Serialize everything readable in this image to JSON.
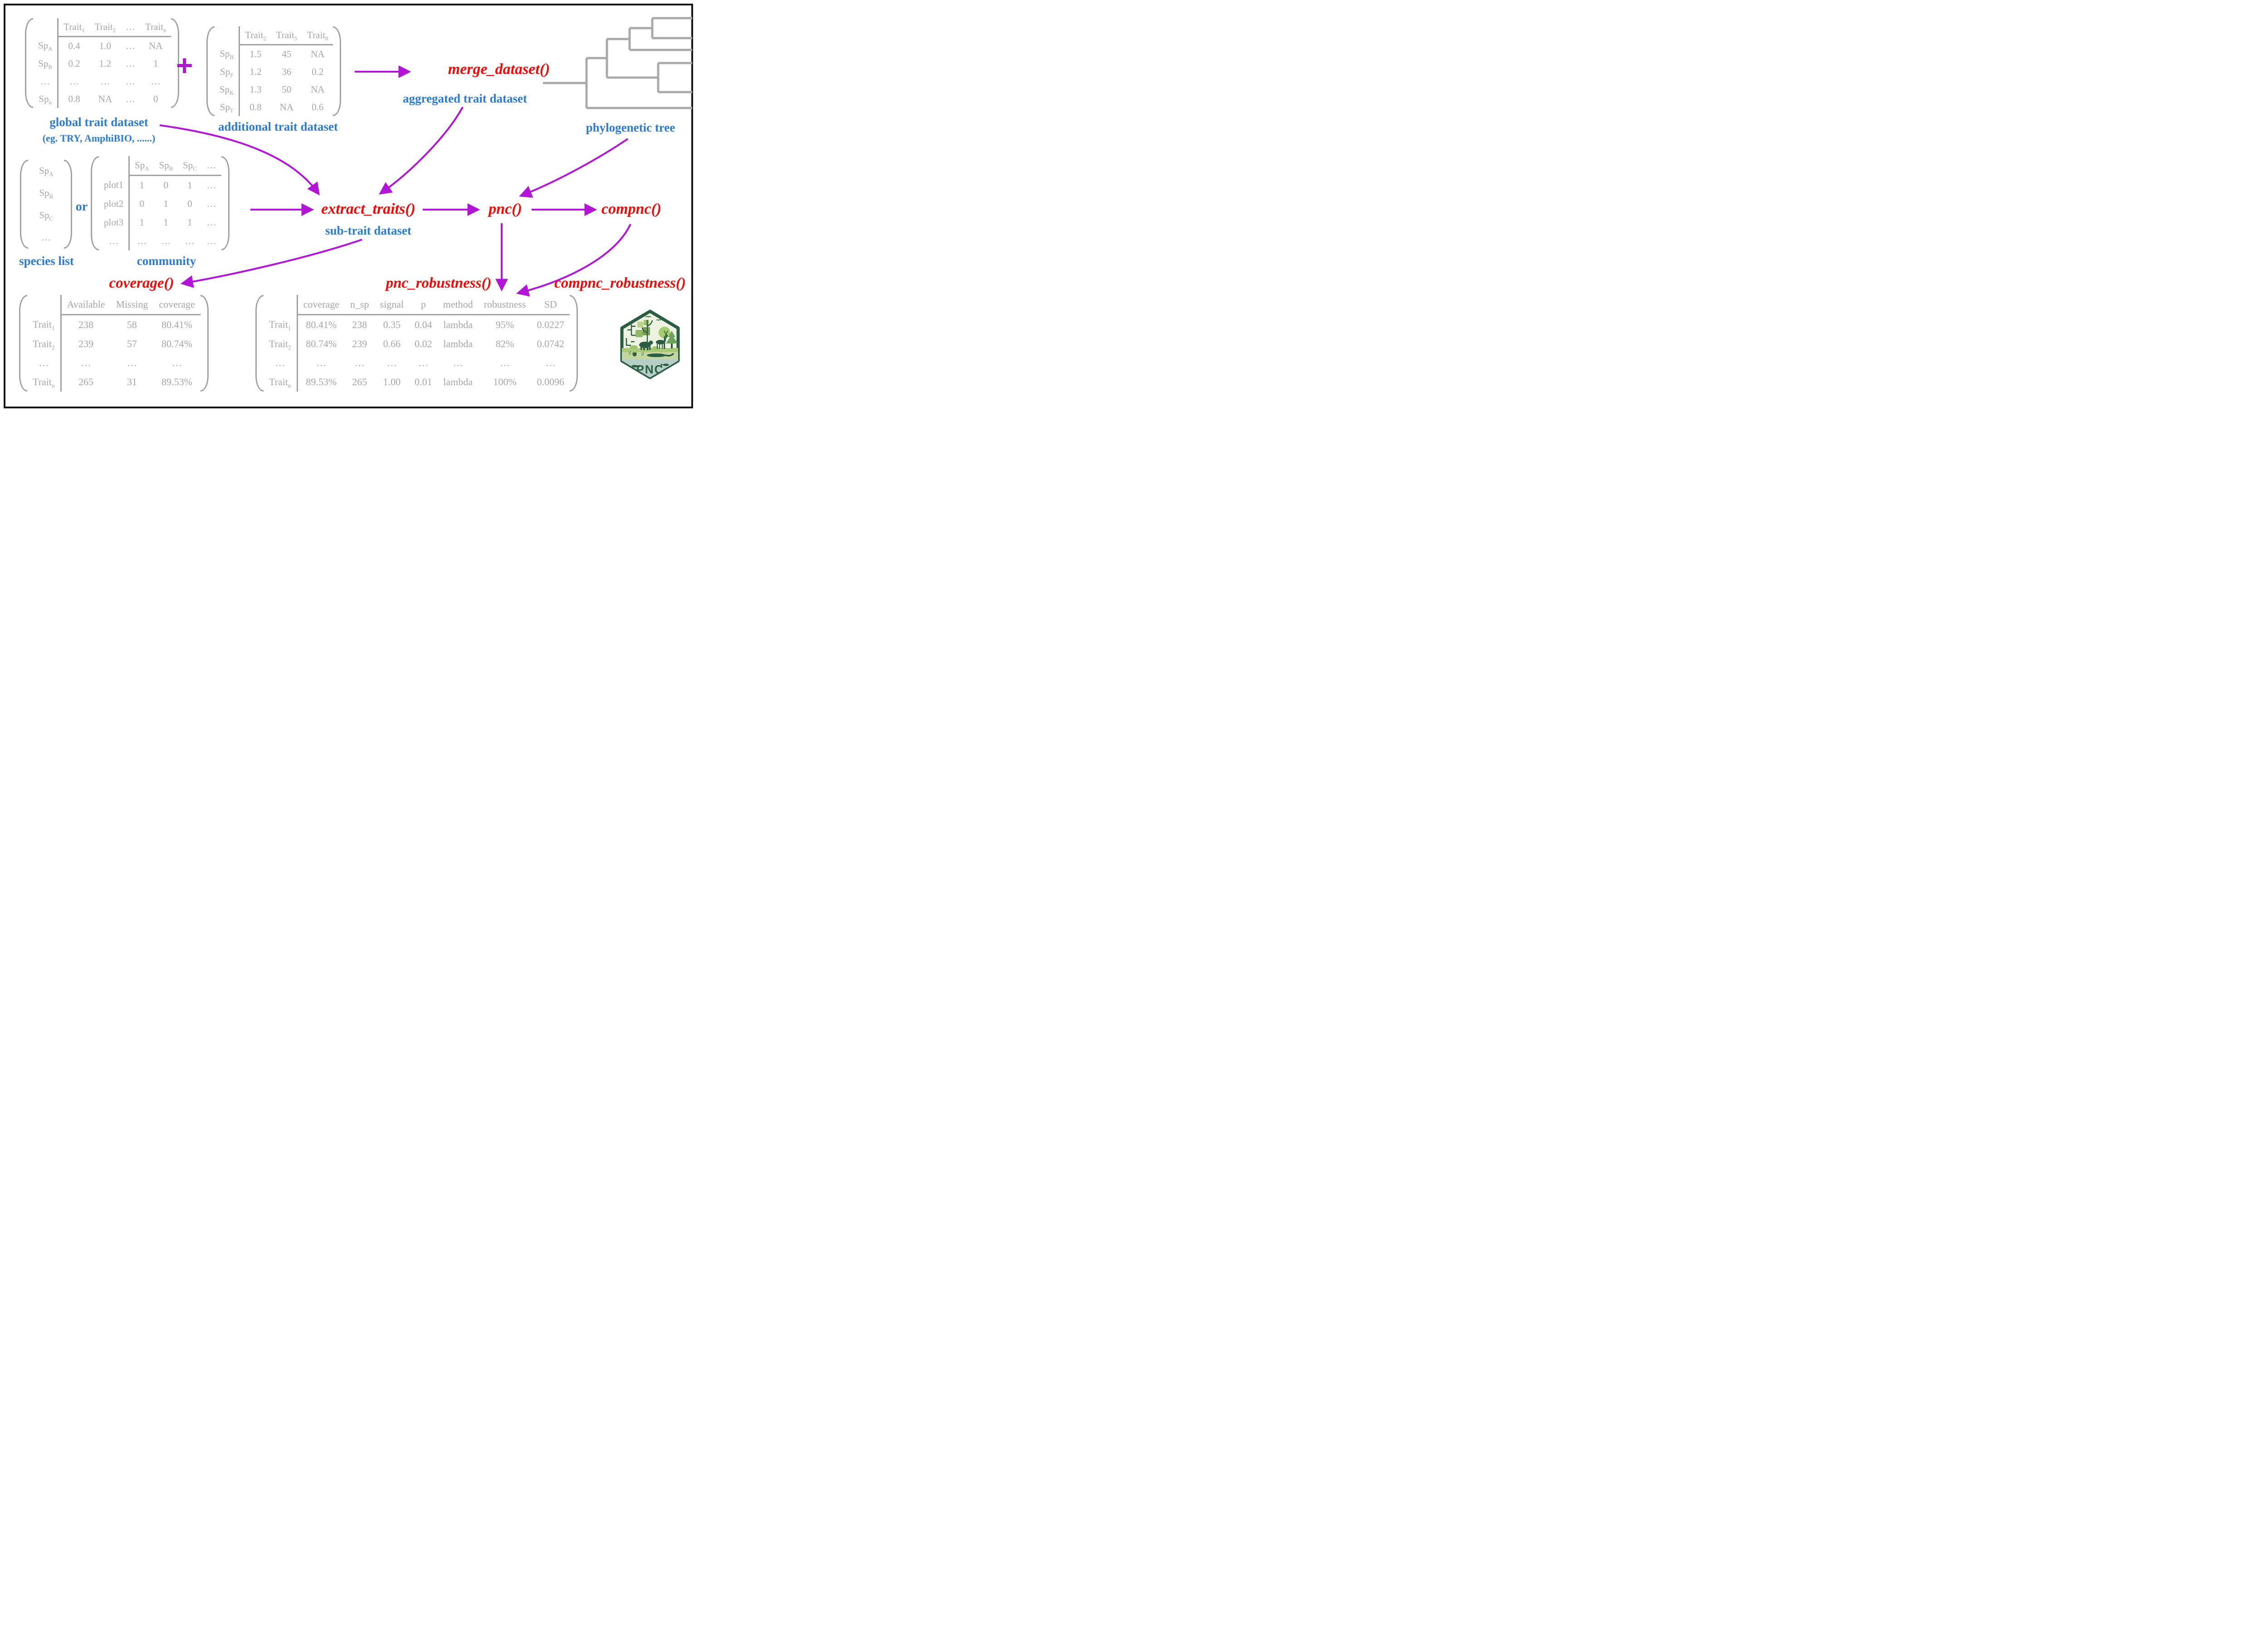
{
  "colors": {
    "accent_blue": "#2b7bd7",
    "function_red": "#f90808",
    "arrow_purple": "#b315d6",
    "matrix_gray": "#a6a6a6",
    "logo_green": "#2a5d43"
  },
  "functions": {
    "merge": "merge_dataset()",
    "extract": "extract_traits()",
    "pnc": "pnc()",
    "compnc": "compnc()",
    "coverage": "coverage()",
    "pnc_robustness": "pnc_robustness()",
    "compnc_robustness": "compnc_robustness()"
  },
  "labels": {
    "global": "global trait dataset",
    "global_sub": "(eg. TRY, AmphiBIO, ......)",
    "additional": "additional trait dataset",
    "aggregated": "aggregated trait dataset",
    "phylo": "phylogenetic tree",
    "species_list": "species list",
    "community": "community",
    "sub_trait": "sub-trait dataset",
    "or": "or",
    "plus": "+"
  },
  "matrices": {
    "global": {
      "row_labels": true,
      "headers": [
        "Trait^1",
        "Trait^2",
        "…",
        "Trait^n"
      ],
      "rows": [
        [
          "Sp^A",
          "0.4",
          "1.0",
          "…",
          "NA"
        ],
        [
          "Sp^B",
          "0.2",
          "1.2",
          "…",
          "1"
        ],
        [
          "…",
          "…",
          "…",
          "…",
          "…"
        ],
        [
          "Sp^n",
          "0.8",
          "NA",
          "…",
          "0"
        ]
      ]
    },
    "additional": {
      "row_labels": true,
      "headers": [
        "Trait^2",
        "Trait^5",
        "Trait^8"
      ],
      "rows": [
        [
          "Sp^B",
          "1.5",
          "45",
          "NA"
        ],
        [
          "Sp^F",
          "1.2",
          "36",
          "0.2"
        ],
        [
          "Sp^K",
          "1.3",
          "50",
          "NA"
        ],
        [
          "Sp^T",
          "0.8",
          "NA",
          "0.6"
        ]
      ]
    },
    "species": {
      "row_labels": false,
      "rows": [
        [
          "Sp^A"
        ],
        [
          "Sp^B"
        ],
        [
          "Sp^C"
        ],
        [
          "…"
        ]
      ]
    },
    "community": {
      "row_labels": true,
      "headers": [
        "Sp^A",
        "Sp^B",
        "Sp^C",
        "…"
      ],
      "rows": [
        [
          "plot1",
          "1",
          "0",
          "1",
          "…"
        ],
        [
          "plot2",
          "0",
          "1",
          "0",
          "…"
        ],
        [
          "plot3",
          "1",
          "1",
          "1",
          "…"
        ],
        [
          "…",
          "…",
          "…",
          "…",
          "…"
        ]
      ]
    },
    "coverage": {
      "row_labels": true,
      "headers": [
        "Available",
        "Missing",
        "coverage"
      ],
      "rows": [
        [
          "Trait^1",
          "238",
          "58",
          "80.41%"
        ],
        [
          "Trait^2",
          "239",
          "57",
          "80.74%"
        ],
        [
          "…",
          "…",
          "…",
          "…"
        ],
        [
          "Trait^n",
          "265",
          "31",
          "89.53%"
        ]
      ]
    },
    "robustness": {
      "row_labels": true,
      "headers": [
        "coverage",
        "n_sp",
        "signal",
        "p",
        "method",
        "robustness",
        "SD"
      ],
      "rows": [
        [
          "Trait^1",
          "80.41%",
          "238",
          "0.35",
          "0.04",
          "lambda",
          "95%",
          "0.0227"
        ],
        [
          "Trait^2",
          "80.74%",
          "239",
          "0.66",
          "0.02",
          "lambda",
          "82%",
          "0.0742"
        ],
        [
          "…",
          "…",
          "…",
          "…",
          "…",
          "…",
          "…",
          "…"
        ],
        [
          "Trait^n",
          "89.53%",
          "265",
          "1.00",
          "0.01",
          "lambda",
          "100%",
          "0.0096"
        ]
      ]
    }
  },
  "logo": {
    "text": "PNC"
  }
}
